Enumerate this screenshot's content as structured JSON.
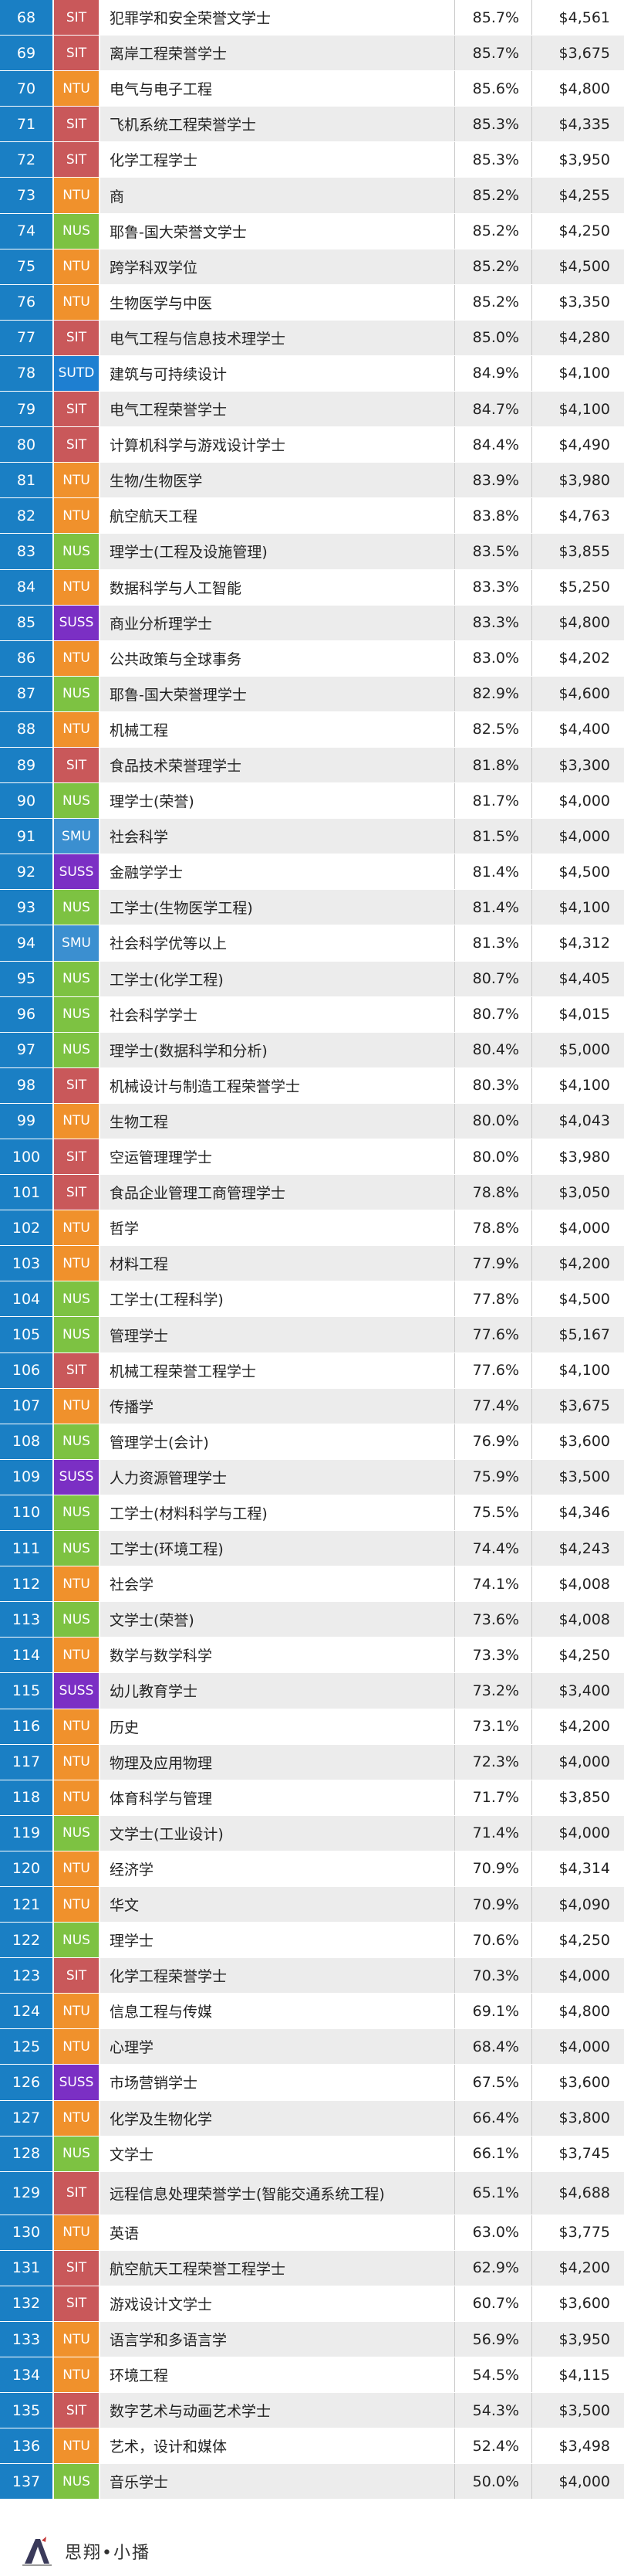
{
  "school_colors": {
    "SIT": "#c9585a",
    "NTU": "#f0912c",
    "NUS": "#7dc242",
    "SMU": "#3b8fd0",
    "SUSS": "#7b2fc4",
    "SUTD": "#1e7fd1"
  },
  "rank_color": "#1a7fc4",
  "rows": [
    {
      "rank": "68",
      "school": "SIT",
      "major": "犯罪学和安全荣誉文学士",
      "pct": "85.7%",
      "salary": "$4,561"
    },
    {
      "rank": "69",
      "school": "SIT",
      "major": "离岸工程荣誉学士",
      "pct": "85.7%",
      "salary": "$3,675"
    },
    {
      "rank": "70",
      "school": "NTU",
      "major": "电气与电子工程",
      "pct": "85.6%",
      "salary": "$4,800"
    },
    {
      "rank": "71",
      "school": "SIT",
      "major": "飞机系统工程荣誉学士",
      "pct": "85.3%",
      "salary": "$4,335"
    },
    {
      "rank": "72",
      "school": "SIT",
      "major": "化学工程学士",
      "pct": "85.3%",
      "salary": "$3,950"
    },
    {
      "rank": "73",
      "school": "NTU",
      "major": "商",
      "pct": "85.2%",
      "salary": "$4,255"
    },
    {
      "rank": "74",
      "school": "NUS",
      "major": "耶鲁-国大荣誉文学士",
      "pct": "85.2%",
      "salary": "$4,250"
    },
    {
      "rank": "75",
      "school": "NTU",
      "major": "跨学科双学位",
      "pct": "85.2%",
      "salary": "$4,500"
    },
    {
      "rank": "76",
      "school": "NTU",
      "major": "生物医学与中医",
      "pct": "85.2%",
      "salary": "$3,350"
    },
    {
      "rank": "77",
      "school": "SIT",
      "major": "电气工程与信息技术理学士",
      "pct": "85.0%",
      "salary": "$4,280"
    },
    {
      "rank": "78",
      "school": "SUTD",
      "major": "建筑与可持续设计",
      "pct": "84.9%",
      "salary": "$4,100"
    },
    {
      "rank": "79",
      "school": "SIT",
      "major": "电气工程荣誉学士",
      "pct": "84.7%",
      "salary": "$4,100"
    },
    {
      "rank": "80",
      "school": "SIT",
      "major": "计算机科学与游戏设计学士",
      "pct": "84.4%",
      "salary": "$4,490"
    },
    {
      "rank": "81",
      "school": "NTU",
      "major": "生物/生物医学",
      "pct": "83.9%",
      "salary": "$3,980"
    },
    {
      "rank": "82",
      "school": "NTU",
      "major": "航空航天工程",
      "pct": "83.8%",
      "salary": "$4,763"
    },
    {
      "rank": "83",
      "school": "NUS",
      "major": "理学士(工程及设施管理)",
      "pct": "83.5%",
      "salary": "$3,855"
    },
    {
      "rank": "84",
      "school": "NTU",
      "major": "数据科学与人工智能",
      "pct": "83.3%",
      "salary": "$5,250"
    },
    {
      "rank": "85",
      "school": "SUSS",
      "major": "商业分析理学士",
      "pct": "83.3%",
      "salary": "$4,800"
    },
    {
      "rank": "86",
      "school": "NTU",
      "major": "公共政策与全球事务",
      "pct": "83.0%",
      "salary": "$4,202"
    },
    {
      "rank": "87",
      "school": "NUS",
      "major": "耶鲁-国大荣誉理学士",
      "pct": "82.9%",
      "salary": "$4,600"
    },
    {
      "rank": "88",
      "school": "NTU",
      "major": "机械工程",
      "pct": "82.5%",
      "salary": "$4,400"
    },
    {
      "rank": "89",
      "school": "SIT",
      "major": "食品技术荣誉理学士",
      "pct": "81.8%",
      "salary": "$3,300"
    },
    {
      "rank": "90",
      "school": "NUS",
      "major": "理学士(荣誉)",
      "pct": "81.7%",
      "salary": "$4,000"
    },
    {
      "rank": "91",
      "school": "SMU",
      "major": "社会科学",
      "pct": "81.5%",
      "salary": "$4,000"
    },
    {
      "rank": "92",
      "school": "SUSS",
      "major": "金融学学士",
      "pct": "81.4%",
      "salary": "$4,500"
    },
    {
      "rank": "93",
      "school": "NUS",
      "major": "工学士(生物医学工程)",
      "pct": "81.4%",
      "salary": "$4,100"
    },
    {
      "rank": "94",
      "school": "SMU",
      "major": "社会科学优等以上",
      "pct": "81.3%",
      "salary": "$4,312"
    },
    {
      "rank": "95",
      "school": "NUS",
      "major": "工学士(化学工程)",
      "pct": "80.7%",
      "salary": "$4,405"
    },
    {
      "rank": "96",
      "school": "NUS",
      "major": "社会科学学士",
      "pct": "80.7%",
      "salary": "$4,015"
    },
    {
      "rank": "97",
      "school": "NUS",
      "major": "理学士(数据科学和分析)",
      "pct": "80.4%",
      "salary": "$5,000"
    },
    {
      "rank": "98",
      "school": "SIT",
      "major": "机械设计与制造工程荣誉学士",
      "pct": "80.3%",
      "salary": "$4,100"
    },
    {
      "rank": "99",
      "school": "NTU",
      "major": "生物工程",
      "pct": "80.0%",
      "salary": "$4,043"
    },
    {
      "rank": "100",
      "school": "SIT",
      "major": "空运管理理学士",
      "pct": "80.0%",
      "salary": "$3,980"
    },
    {
      "rank": "101",
      "school": "SIT",
      "major": "食品企业管理工商管理学士",
      "pct": "78.8%",
      "salary": "$3,050"
    },
    {
      "rank": "102",
      "school": "NTU",
      "major": "哲学",
      "pct": "78.8%",
      "salary": "$4,000"
    },
    {
      "rank": "103",
      "school": "NTU",
      "major": "材料工程",
      "pct": "77.9%",
      "salary": "$4,200"
    },
    {
      "rank": "104",
      "school": "NUS",
      "major": "工学士(工程科学)",
      "pct": "77.8%",
      "salary": "$4,500"
    },
    {
      "rank": "105",
      "school": "NUS",
      "major": "管理学士",
      "pct": "77.6%",
      "salary": "$5,167"
    },
    {
      "rank": "106",
      "school": "SIT",
      "major": "机械工程荣誉工程学士",
      "pct": "77.6%",
      "salary": "$4,100"
    },
    {
      "rank": "107",
      "school": "NTU",
      "major": "传播学",
      "pct": "77.4%",
      "salary": "$3,675"
    },
    {
      "rank": "108",
      "school": "NUS",
      "major": "管理学士(会计)",
      "pct": "76.9%",
      "salary": "$3,600"
    },
    {
      "rank": "109",
      "school": "SUSS",
      "major": "人力资源管理学士",
      "pct": "75.9%",
      "salary": "$3,500"
    },
    {
      "rank": "110",
      "school": "NUS",
      "major": "工学士(材料科学与工程)",
      "pct": "75.5%",
      "salary": "$4,346"
    },
    {
      "rank": "111",
      "school": "NUS",
      "major": "工学士(环境工程)",
      "pct": "74.4%",
      "salary": "$4,243"
    },
    {
      "rank": "112",
      "school": "NTU",
      "major": "社会学",
      "pct": "74.1%",
      "salary": "$4,008"
    },
    {
      "rank": "113",
      "school": "NUS",
      "major": "文学士(荣誉)",
      "pct": "73.6%",
      "salary": "$4,008"
    },
    {
      "rank": "114",
      "school": "NTU",
      "major": "数学与数学科学",
      "pct": "73.3%",
      "salary": "$4,250"
    },
    {
      "rank": "115",
      "school": "SUSS",
      "major": "幼儿教育学士",
      "pct": "73.2%",
      "salary": "$3,400"
    },
    {
      "rank": "116",
      "school": "NTU",
      "major": "历史",
      "pct": "73.1%",
      "salary": "$4,200"
    },
    {
      "rank": "117",
      "school": "NTU",
      "major": "物理及应用物理",
      "pct": "72.3%",
      "salary": "$4,000"
    },
    {
      "rank": "118",
      "school": "NTU",
      "major": "体育科学与管理",
      "pct": "71.7%",
      "salary": "$3,850"
    },
    {
      "rank": "119",
      "school": "NUS",
      "major": "文学士(工业设计)",
      "pct": "71.4%",
      "salary": "$4,000"
    },
    {
      "rank": "120",
      "school": "NTU",
      "major": "经济学",
      "pct": "70.9%",
      "salary": "$4,314"
    },
    {
      "rank": "121",
      "school": "NTU",
      "major": "华文",
      "pct": "70.9%",
      "salary": "$4,090"
    },
    {
      "rank": "122",
      "school": "NUS",
      "major": "理学士",
      "pct": "70.6%",
      "salary": "$4,250"
    },
    {
      "rank": "123",
      "school": "SIT",
      "major": "化学工程荣誉学士",
      "pct": "70.3%",
      "salary": "$4,000"
    },
    {
      "rank": "124",
      "school": "NTU",
      "major": "信息工程与传媒",
      "pct": "69.1%",
      "salary": "$4,800"
    },
    {
      "rank": "125",
      "school": "NTU",
      "major": "心理学",
      "pct": "68.4%",
      "salary": "$4,000"
    },
    {
      "rank": "126",
      "school": "SUSS",
      "major": "市场营销学士",
      "pct": "67.5%",
      "salary": "$3,600"
    },
    {
      "rank": "127",
      "school": "NTU",
      "major": "化学及生物化学",
      "pct": "66.4%",
      "salary": "$3,800"
    },
    {
      "rank": "128",
      "school": "NUS",
      "major": "文学士",
      "pct": "66.1%",
      "salary": "$3,745"
    },
    {
      "rank": "129",
      "school": "SIT",
      "major": "远程信息处理荣誉学士(智能交通系统工程)",
      "pct": "65.1%",
      "salary": "$4,688",
      "tall": true
    },
    {
      "rank": "130",
      "school": "NTU",
      "major": "英语",
      "pct": "63.0%",
      "salary": "$3,775"
    },
    {
      "rank": "131",
      "school": "SIT",
      "major": "航空航天工程荣誉工程学士",
      "pct": "62.9%",
      "salary": "$4,200"
    },
    {
      "rank": "132",
      "school": "SIT",
      "major": "游戏设计文学士",
      "pct": "60.7%",
      "salary": "$3,600"
    },
    {
      "rank": "133",
      "school": "NTU",
      "major": "语言学和多语言学",
      "pct": "56.9%",
      "salary": "$3,950"
    },
    {
      "rank": "134",
      "school": "NTU",
      "major": "环境工程",
      "pct": "54.5%",
      "salary": "$4,115"
    },
    {
      "rank": "135",
      "school": "SIT",
      "major": "数字艺术与动画艺术学士",
      "pct": "54.3%",
      "salary": "$3,500"
    },
    {
      "rank": "136",
      "school": "NTU",
      "major": "艺术，设计和媒体",
      "pct": "52.4%",
      "salary": "$3,498"
    },
    {
      "rank": "137",
      "school": "NUS",
      "major": "音乐学士",
      "pct": "50.0%",
      "salary": "$4,000"
    }
  ],
  "footer": {
    "brand_text": "思翔•小播",
    "logo_icon": "a-logo-icon"
  }
}
